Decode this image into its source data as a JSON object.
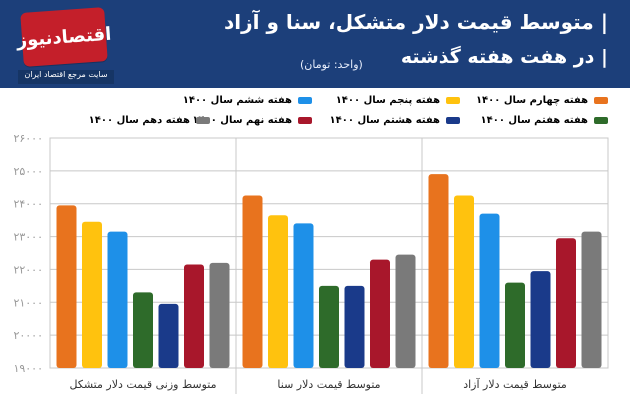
{
  "header": {
    "title_line1": "| متوسط قیمت دلار متشکل، سنا و آزاد",
    "title_line2": "| در هفت هفته گذشته",
    "unit": "(واحد: تومان)",
    "logo_text": "اقتصادنیوز",
    "site_text": "سایت مرجع اقتصاد ایران"
  },
  "colors": {
    "header_bg": "#1c3f7a",
    "grid": "#c8c8c8"
  },
  "chart_data": {
    "type": "bar",
    "categories": [
      "متوسط وزنی قیمت دلار متشکل",
      "متوسط قیمت دلار سنا",
      "متوسط قیمت دلار آزاد"
    ],
    "ylim": [
      19000,
      26000
    ],
    "yticks": [
      19000,
      20000,
      21000,
      22000,
      23000,
      24000,
      25000,
      26000
    ],
    "ytick_labels": [
      "۱۹۰۰۰",
      "۲۰۰۰۰",
      "۲۱۰۰۰",
      "۲۲۰۰۰",
      "۲۳۰۰۰",
      "۲۴۰۰۰",
      "۲۵۰۰۰",
      "۲۶۰۰۰"
    ],
    "series": [
      {
        "name": "هفته چهارم سال ۱۴۰۰",
        "color": "#e8731e",
        "values": [
          23950,
          24250,
          24900
        ]
      },
      {
        "name": "هفته پنجم سال ۱۴۰۰",
        "color": "#ffc20e",
        "values": [
          23450,
          23650,
          24250
        ]
      },
      {
        "name": "هفته ششم سال ۱۴۰۰",
        "color": "#1e90e8",
        "values": [
          23150,
          23400,
          23700
        ]
      },
      {
        "name": "هفته هفتم سال ۱۴۰۰",
        "color": "#2e6b2a",
        "values": [
          21300,
          21500,
          21600
        ]
      },
      {
        "name": "هفته هشتم سال ۱۴۰۰",
        "color": "#1a3a8a",
        "values": [
          20950,
          21500,
          21950
        ]
      },
      {
        "name": "هفته نهم سال ۱۴۰۰",
        "color": "#a8172b",
        "values": [
          22150,
          22300,
          22950
        ]
      },
      {
        "name": "هفته دهم سال ۱۴۰۰",
        "color": "#7a7a7a",
        "values": [
          22200,
          22450,
          23150
        ]
      }
    ]
  }
}
